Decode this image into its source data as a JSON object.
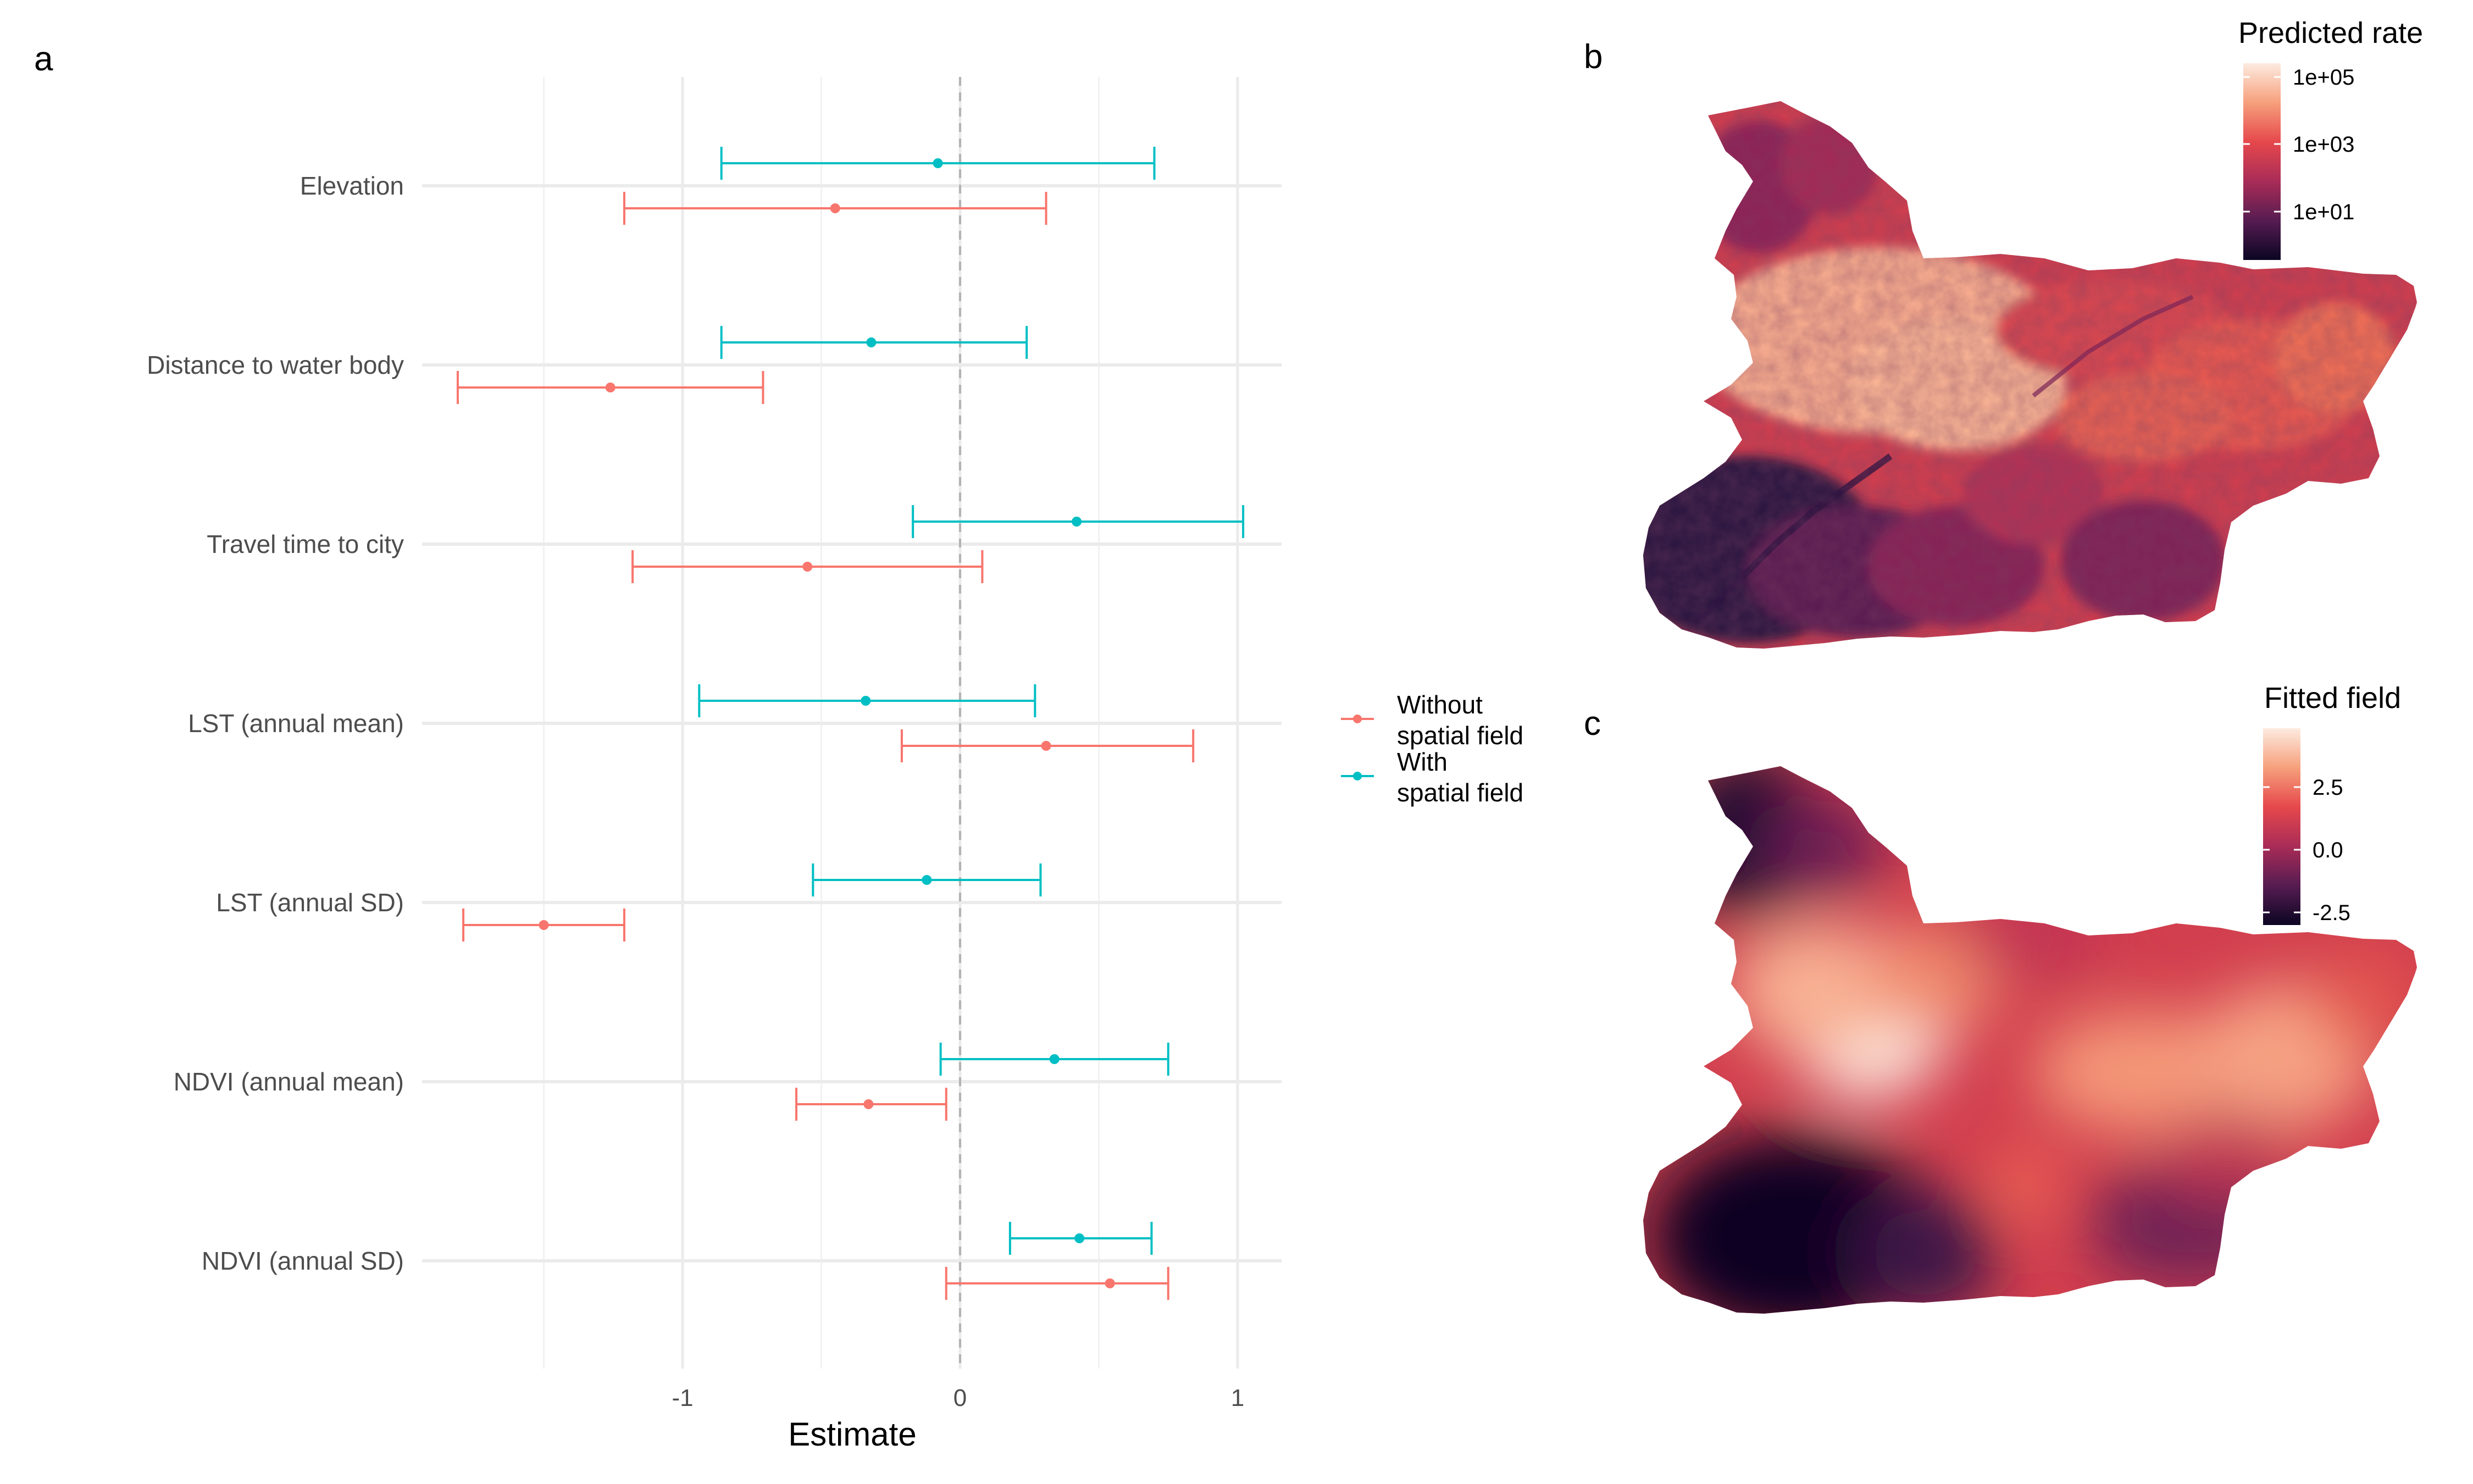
{
  "panels": {
    "a": "a",
    "b": "b",
    "c": "c"
  },
  "chart_data": [
    {
      "type": "scatter",
      "subtype": "coefficient-plot",
      "xlabel": "Estimate",
      "xlim": [
        -1.9,
        1.17
      ],
      "x_ticks": [
        -1,
        0,
        1
      ],
      "x_tick_labels": [
        "-1",
        "0",
        "1"
      ],
      "reference_line": 0,
      "grid": true,
      "legend_position": "right",
      "categories": [
        "Elevation",
        "Distance to water body",
        "Travel time to city",
        "LST (annual mean)",
        "LST (annual SD)",
        "NDVI (annual mean)",
        "NDVI (annual SD)"
      ],
      "series": [
        {
          "legend_line1": "Without",
          "legend_line2": "spatial field",
          "color": "#F8766D",
          "estimate": [
            -0.45,
            -1.26,
            -0.55,
            0.31,
            -1.5,
            -0.33,
            0.54
          ],
          "lower": [
            -1.21,
            -1.81,
            -1.18,
            -0.21,
            -1.79,
            -0.59,
            -0.05
          ],
          "upper": [
            0.31,
            -0.71,
            0.08,
            0.84,
            -1.21,
            -0.05,
            0.75
          ]
        },
        {
          "legend_line1": "With",
          "legend_line2": "spatial field",
          "color": "#00BFC4",
          "estimate": [
            -0.08,
            -0.32,
            0.42,
            -0.34,
            -0.12,
            0.34,
            0.43
          ],
          "lower": [
            -0.86,
            -0.86,
            -0.17,
            -0.94,
            -0.53,
            -0.07,
            0.18
          ],
          "upper": [
            0.7,
            0.24,
            1.02,
            0.27,
            0.29,
            0.75,
            0.69
          ]
        }
      ]
    },
    {
      "type": "heatmap",
      "subtype": "choropleth-map",
      "legend_title": "Predicted rate",
      "scale": "log",
      "legend_ticks": [
        "1e+05",
        "1e+03",
        "1e+01"
      ],
      "colors": [
        "#fdebe0",
        "#f0725a",
        "#cf3e4e",
        "#8a2357",
        "#3f1a46",
        "#0b0522"
      ]
    },
    {
      "type": "heatmap",
      "subtype": "smooth-field-map",
      "legend_title": "Fitted field",
      "legend_ticks": [
        "2.5",
        "0.0",
        "-2.5"
      ],
      "colors": [
        "#fdebe0",
        "#f0725a",
        "#cf3e4e",
        "#8a2357",
        "#3f1a46",
        "#0b0522"
      ]
    }
  ]
}
